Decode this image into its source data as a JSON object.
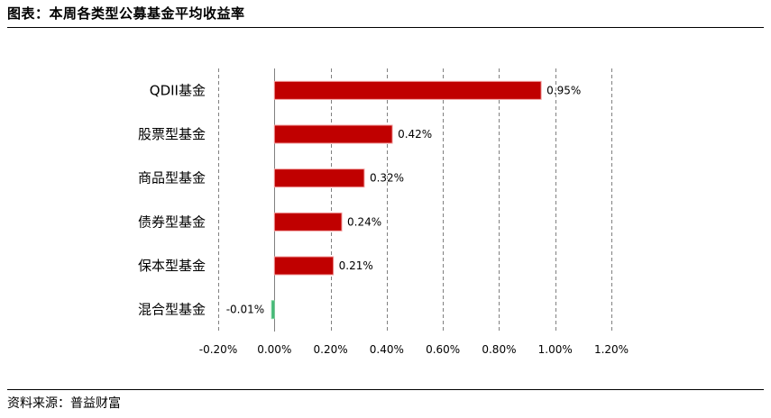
{
  "header": {
    "title": "图表：本周各类型公募基金平均收益率"
  },
  "footer": {
    "source": "资料来源：普益财富"
  },
  "chart_data": {
    "type": "bar",
    "orientation": "horizontal",
    "categories": [
      "QDII基金",
      "股票型基金",
      "商品型基金",
      "债券型基金",
      "保本型基金",
      "混合型基金"
    ],
    "values": [
      0.95,
      0.42,
      0.32,
      0.24,
      0.21,
      -0.01
    ],
    "value_labels": [
      "0.95%",
      "0.42%",
      "0.32%",
      "0.24%",
      "0.21%",
      "-0.01%"
    ],
    "xlim": [
      -0.2,
      1.2
    ],
    "xticks": [
      -0.2,
      0,
      0.2,
      0.4,
      0.6,
      0.8,
      1.0,
      1.2
    ],
    "xtick_labels": [
      "-0.20%",
      "0.00%",
      "0.20%",
      "0.40%",
      "0.60%",
      "0.80%",
      "1.00%",
      "1.20%"
    ],
    "grid": "vertical-dashed",
    "colors": {
      "positive": "#c00000",
      "negative": "#3cb371",
      "grid": "#808080"
    }
  }
}
